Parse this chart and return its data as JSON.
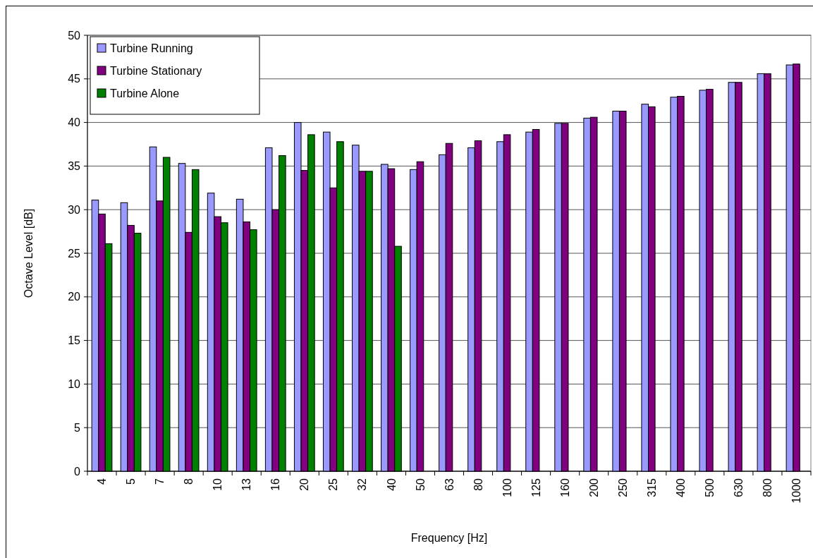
{
  "chart_data": {
    "type": "bar",
    "xlabel": "Frequency [Hz]",
    "ylabel": "Octave Level [dB]",
    "categories": [
      "4",
      "5",
      "7",
      "8",
      "10",
      "13",
      "16",
      "20",
      "25",
      "32",
      "40",
      "50",
      "63",
      "80",
      "100",
      "125",
      "160",
      "200",
      "250",
      "315",
      "400",
      "500",
      "630",
      "800",
      "1000"
    ],
    "series": [
      {
        "name": "Turbine Running",
        "color": "#9999ff",
        "values": [
          31.1,
          30.8,
          37.2,
          35.3,
          31.9,
          31.2,
          37.1,
          40.0,
          38.9,
          37.4,
          35.2,
          34.6,
          36.3,
          37.1,
          37.8,
          38.9,
          39.9,
          40.5,
          41.3,
          42.1,
          42.9,
          43.7,
          44.6,
          45.6,
          46.6
        ]
      },
      {
        "name": "Turbine Stationary",
        "color": "#800080",
        "values": [
          29.5,
          28.2,
          31.0,
          27.4,
          29.2,
          28.6,
          30.0,
          34.5,
          32.5,
          34.4,
          34.7,
          35.5,
          37.6,
          37.9,
          38.6,
          39.2,
          39.9,
          40.6,
          41.3,
          41.8,
          43.0,
          43.8,
          44.6,
          45.6,
          46.7
        ]
      },
      {
        "name": "Turbine Alone",
        "color": "#008000",
        "values": [
          26.1,
          27.3,
          36.0,
          34.6,
          28.5,
          27.7,
          36.2,
          38.6,
          37.8,
          34.4,
          25.8,
          null,
          null,
          null,
          null,
          null,
          null,
          null,
          null,
          null,
          null,
          null,
          null,
          null,
          null
        ]
      }
    ],
    "ylim": [
      0,
      50
    ],
    "yticks": [
      0,
      5,
      10,
      15,
      20,
      25,
      30,
      35,
      40,
      45,
      50
    ],
    "grid": "y",
    "legend": "top left"
  }
}
